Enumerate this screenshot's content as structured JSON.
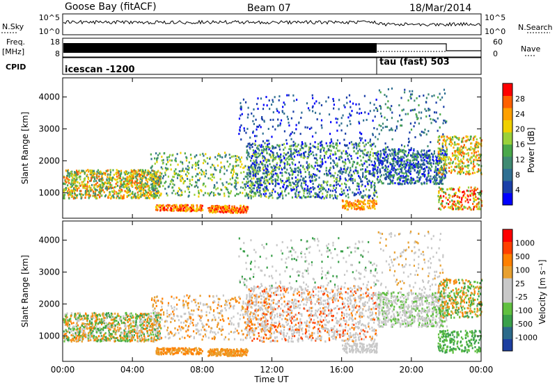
{
  "header": {
    "station": "Goose Bay (fitACF)",
    "beam": "Beam 07",
    "date": "18/Mar/2014"
  },
  "params": {
    "left_labels": [
      "N.Sky",
      "Freq.",
      "[MHz]",
      "CPID"
    ],
    "right_labels": [
      "N.Search",
      "Nave"
    ],
    "nsky_ticks": [
      "10^5",
      "10^0"
    ],
    "freq_ticks": [
      "18",
      "8"
    ],
    "nsearch_ticks": [
      "10^5",
      "10^0"
    ],
    "nave_ticks": [
      "60",
      "0"
    ],
    "cpid_segments": [
      {
        "label": "icescan -1200",
        "start_hour": 0,
        "end_hour": 18
      },
      {
        "label": "tau (fast) 503",
        "start_hour": 18,
        "end_hour": 24
      }
    ]
  },
  "colors": {
    "power_scale": [
      "#0000ff",
      "#1a3fa8",
      "#2f6f92",
      "#3f8a72",
      "#4aa84a",
      "#9ad13a",
      "#f0d000",
      "#ffa000",
      "#ff6000",
      "#ff0000"
    ],
    "velocity_scale": [
      "#1d3fa0",
      "#2c6a8a",
      "#3aa04a",
      "#60c040",
      "#c8c8c8",
      "#c8c8c8",
      "#e8a030",
      "#ff8000",
      "#ff4000",
      "#ff0000"
    ]
  },
  "chart_data": [
    {
      "type": "heatmap",
      "title": "",
      "xlabel": "",
      "ylabel": "Slant Range [km]",
      "x_ticks": [
        "00:00",
        "04:00",
        "08:00",
        "12:00",
        "16:00",
        "20:00",
        "00:00"
      ],
      "xlim_hours": [
        0,
        24
      ],
      "ylim": [
        200,
        4600
      ],
      "y_ticks": [
        1000,
        2000,
        3000,
        4000
      ],
      "colorbar": {
        "label": "Power [dB]",
        "ticks": [
          4,
          8,
          12,
          16,
          20,
          24,
          28
        ]
      }
    },
    {
      "type": "heatmap",
      "title": "",
      "xlabel": "Time UT",
      "ylabel": "Slant Range [km]",
      "x_ticks": [
        "00:00",
        "04:00",
        "08:00",
        "12:00",
        "16:00",
        "20:00",
        "00:00"
      ],
      "xlim_hours": [
        0,
        24
      ],
      "ylim": [
        200,
        4600
      ],
      "y_ticks": [
        1000,
        2000,
        3000,
        4000
      ],
      "colorbar": {
        "label": "Velocity [m s⁻¹]",
        "ticks": [
          1000,
          500,
          100,
          25,
          -25,
          -100,
          -500,
          -1000
        ]
      }
    }
  ]
}
